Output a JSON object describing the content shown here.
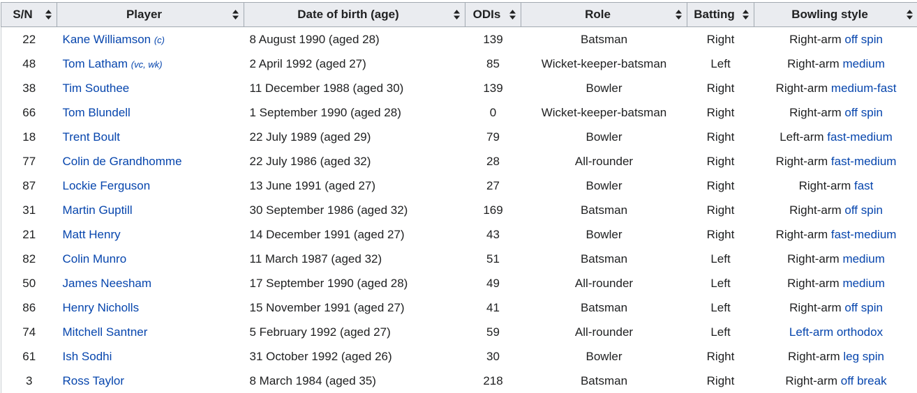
{
  "columns": [
    "S/N",
    "Player",
    "Date of birth (age)",
    "ODIs",
    "Role",
    "Batting",
    "Bowling style"
  ],
  "rows": [
    {
      "sn": "22",
      "player": "Kane Williamson",
      "note": "(c)",
      "dob": "8 August 1990 (aged 28)",
      "odis": "139",
      "role": "Batsman",
      "batting": "Right",
      "bowl_prefix": "Right-arm ",
      "bowl_link": "off spin"
    },
    {
      "sn": "48",
      "player": "Tom Latham",
      "note": "(vc, wk)",
      "dob": "2 April 1992 (aged 27)",
      "odis": "85",
      "role": "Wicket-keeper-batsman",
      "batting": "Left",
      "bowl_prefix": "Right-arm ",
      "bowl_link": "medium"
    },
    {
      "sn": "38",
      "player": "Tim Southee",
      "note": "",
      "dob": "11 December 1988 (aged 30)",
      "odis": "139",
      "role": "Bowler",
      "batting": "Right",
      "bowl_prefix": "Right-arm ",
      "bowl_link": "medium-fast"
    },
    {
      "sn": "66",
      "player": "Tom Blundell",
      "note": "",
      "dob": "1 September 1990 (aged 28)",
      "odis": "0",
      "role": "Wicket-keeper-batsman",
      "batting": "Right",
      "bowl_prefix": "Right-arm ",
      "bowl_link": "off spin"
    },
    {
      "sn": "18",
      "player": "Trent Boult",
      "note": "",
      "dob": "22 July 1989 (aged 29)",
      "odis": "79",
      "role": "Bowler",
      "batting": "Right",
      "bowl_prefix": "Left-arm ",
      "bowl_link": "fast-medium"
    },
    {
      "sn": "77",
      "player": "Colin de Grandhomme",
      "note": "",
      "dob": "22 July 1986 (aged 32)",
      "odis": "28",
      "role": "All-rounder",
      "batting": "Right",
      "bowl_prefix": "Right-arm ",
      "bowl_link": "fast-medium"
    },
    {
      "sn": "87",
      "player": "Lockie Ferguson",
      "note": "",
      "dob": "13 June 1991 (aged 27)",
      "odis": "27",
      "role": "Bowler",
      "batting": "Right",
      "bowl_prefix": "Right-arm ",
      "bowl_link": "fast"
    },
    {
      "sn": "31",
      "player": "Martin Guptill",
      "note": "",
      "dob": "30 September 1986 (aged 32)",
      "odis": "169",
      "role": "Batsman",
      "batting": "Right",
      "bowl_prefix": "Right-arm ",
      "bowl_link": "off spin"
    },
    {
      "sn": "21",
      "player": "Matt Henry",
      "note": "",
      "dob": "14 December 1991 (aged 27)",
      "odis": "43",
      "role": "Bowler",
      "batting": "Right",
      "bowl_prefix": "Right-arm ",
      "bowl_link": "fast-medium"
    },
    {
      "sn": "82",
      "player": "Colin Munro",
      "note": "",
      "dob": "11 March 1987 (aged 32)",
      "odis": "51",
      "role": "Batsman",
      "batting": "Left",
      "bowl_prefix": "Right-arm ",
      "bowl_link": "medium"
    },
    {
      "sn": "50",
      "player": "James Neesham",
      "note": "",
      "dob": "17 September 1990 (aged 28)",
      "odis": "49",
      "role": "All-rounder",
      "batting": "Left",
      "bowl_prefix": "Right-arm ",
      "bowl_link": "medium"
    },
    {
      "sn": "86",
      "player": "Henry Nicholls",
      "note": "",
      "dob": "15 November 1991 (aged 27)",
      "odis": "41",
      "role": "Batsman",
      "batting": "Left",
      "bowl_prefix": "Right-arm ",
      "bowl_link": "off spin"
    },
    {
      "sn": "74",
      "player": "Mitchell Santner",
      "note": "",
      "dob": "5 February 1992 (aged 27)",
      "odis": "59",
      "role": "All-rounder",
      "batting": "Left",
      "bowl_prefix": "",
      "bowl_link": "Left-arm orthodox"
    },
    {
      "sn": "61",
      "player": "Ish Sodhi",
      "note": "",
      "dob": "31 October 1992 (aged 26)",
      "odis": "30",
      "role": "Bowler",
      "batting": "Right",
      "bowl_prefix": "Right-arm ",
      "bowl_link": "leg spin"
    },
    {
      "sn": "3",
      "player": "Ross Taylor",
      "note": "",
      "dob": "8 March 1984 (aged 35)",
      "odis": "218",
      "role": "Batsman",
      "batting": "Right",
      "bowl_prefix": "Right-arm ",
      "bowl_link": "off break"
    }
  ],
  "colors": {
    "link": "#0645ad",
    "header_bg": "#eaecf0",
    "border": "#a2a9b1"
  },
  "icons": {
    "sort": "sort-arrows-icon"
  }
}
